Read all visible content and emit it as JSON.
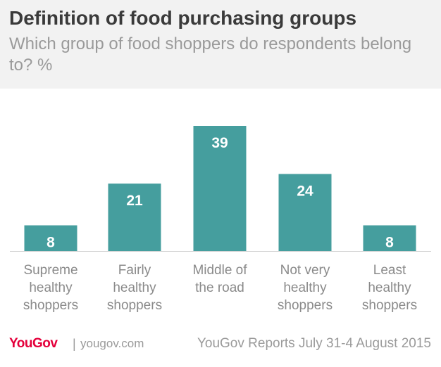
{
  "header": {
    "title": "Definition of food purchasing groups",
    "subtitle": "Which group of food shoppers do respondents belong to? %"
  },
  "chart_data": {
    "type": "bar",
    "title": "Definition of food purchasing groups",
    "subtitle": "Which group of food shoppers do respondents belong to? %",
    "categories": [
      [
        "Supreme",
        "healthy",
        "shoppers"
      ],
      [
        "Fairly",
        "healthy",
        "shoppers"
      ],
      [
        "Middle of",
        "the road"
      ],
      [
        "Not very",
        "healthy",
        "shoppers"
      ],
      [
        "Least",
        "healthy",
        "shoppers"
      ]
    ],
    "values": [
      8,
      21,
      39,
      24,
      8
    ],
    "ylim": [
      0,
      39
    ],
    "grid": false,
    "data_labels": "inside-top",
    "bar_color": "#459e9e",
    "label_color": "#ffffff"
  },
  "footer": {
    "logo_you": "You",
    "logo_gov": "Gov",
    "separator": "|",
    "site": "yougov.com",
    "source": "YouGov Reports July 31-4 August 2015"
  },
  "colors": {
    "header_bg": "#f2f2f2",
    "title": "#3a3a3a",
    "muted": "#9a9a9a",
    "brand": "#e4003b",
    "bar": "#459e9e"
  }
}
